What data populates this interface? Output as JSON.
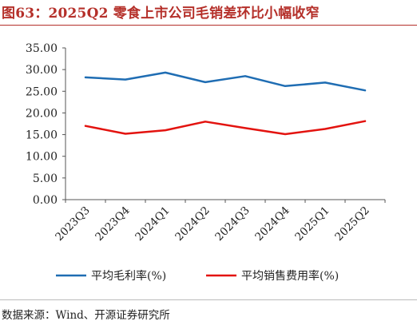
{
  "figure": {
    "title": "图63：2025Q2 零食上市公司毛销差环比小幅收窄",
    "source": "数据来源：Wind、开源证券研究所"
  },
  "chart_data": {
    "type": "line",
    "categories": [
      "2023Q3",
      "2023Q4",
      "2024Q1",
      "2024Q2",
      "2024Q3",
      "2024Q4",
      "2025Q1",
      "2025Q2"
    ],
    "series": [
      {
        "name": "平均毛利率(%)",
        "color": "#1f6db3",
        "values": [
          28.2,
          27.7,
          29.3,
          27.1,
          28.5,
          26.2,
          27.0,
          25.2
        ]
      },
      {
        "name": "平均销售费用率(%)",
        "color": "#e3130f",
        "values": [
          17.0,
          15.2,
          16.0,
          18.0,
          16.5,
          15.1,
          16.3,
          18.1
        ]
      }
    ],
    "ylim": [
      0,
      35
    ],
    "yticks": [
      "0.00",
      "5.00",
      "10.00",
      "15.00",
      "20.00",
      "25.00",
      "30.00",
      "35.00"
    ],
    "xlabel": "",
    "ylabel": "",
    "grid": false,
    "legend": "bottom"
  }
}
